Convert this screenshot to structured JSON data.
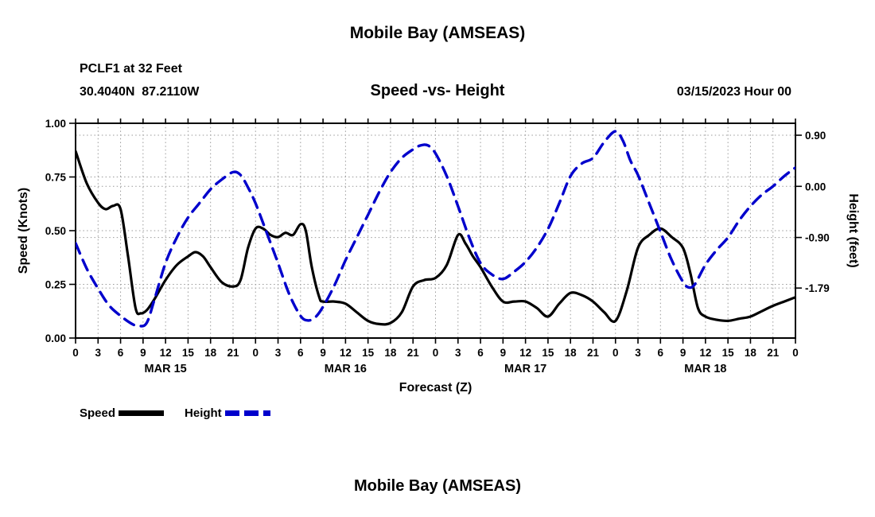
{
  "header": {
    "title": "Mobile Bay (AMSEAS)",
    "station": "PCLF1 at 32 Feet",
    "coordinates": "30.4040N  87.2110W",
    "subtitle": "Speed -vs- Height",
    "datetime": "03/15/2023 Hour 00"
  },
  "footer": {
    "title": "Mobile Bay (AMSEAS)"
  },
  "legend": {
    "speed_label": "Speed",
    "height_label": "Height"
  },
  "colors": {
    "speed": "#000000",
    "height": "#0000cc",
    "grid": "#9a9a9a",
    "frame": "#000000"
  },
  "chart_data": {
    "type": "line",
    "title": "Speed -vs- Height",
    "xlabel": "Forecast (Z)",
    "ylabel_left": "Speed (Knots)",
    "ylabel_right": "Height (feet)",
    "grid": "dotted",
    "legend_position": "bottom-left",
    "x_hours_range": [
      0,
      96
    ],
    "x_tick_interval": 3,
    "x_tick_labels_cycle": [
      "0",
      "3",
      "6",
      "9",
      "12",
      "15",
      "18",
      "21"
    ],
    "day_labels": [
      "MAR 15",
      "MAR 16",
      "MAR 17",
      "MAR 18"
    ],
    "left_axis": {
      "range": [
        0.0,
        1.0
      ],
      "ticks": [
        0.0,
        0.25,
        0.5,
        0.75,
        1.0
      ],
      "tick_labels": [
        "0.00",
        "0.25",
        "0.50",
        "0.75",
        "1.00"
      ]
    },
    "right_axis": {
      "range": [
        -2.67,
        1.11
      ],
      "ticks": [
        0.9,
        0.0,
        -0.9,
        -1.79
      ],
      "tick_labels": [
        "0.90",
        "0.00",
        "-0.90",
        "-1.79"
      ]
    },
    "series": [
      {
        "name": "Speed",
        "axis": "left",
        "color": "#000000",
        "style": "solid",
        "points": [
          [
            0,
            0.87
          ],
          [
            1.5,
            0.72
          ],
          [
            3,
            0.63
          ],
          [
            4,
            0.6
          ],
          [
            5,
            0.615
          ],
          [
            6,
            0.6
          ],
          [
            7,
            0.38
          ],
          [
            8,
            0.14
          ],
          [
            8.7,
            0.115
          ],
          [
            9.5,
            0.13
          ],
          [
            10.5,
            0.18
          ],
          [
            12,
            0.27
          ],
          [
            13.5,
            0.34
          ],
          [
            15,
            0.38
          ],
          [
            16,
            0.4
          ],
          [
            17,
            0.38
          ],
          [
            18,
            0.33
          ],
          [
            19.5,
            0.26
          ],
          [
            21,
            0.24
          ],
          [
            22,
            0.27
          ],
          [
            23,
            0.42
          ],
          [
            24,
            0.51
          ],
          [
            25,
            0.51
          ],
          [
            26,
            0.48
          ],
          [
            27,
            0.47
          ],
          [
            28,
            0.49
          ],
          [
            29,
            0.48
          ],
          [
            30,
            0.53
          ],
          [
            30.7,
            0.5
          ],
          [
            31.5,
            0.33
          ],
          [
            32.5,
            0.19
          ],
          [
            33,
            0.17
          ],
          [
            34.5,
            0.17
          ],
          [
            36,
            0.16
          ],
          [
            37.5,
            0.12
          ],
          [
            39,
            0.08
          ],
          [
            40.5,
            0.065
          ],
          [
            42,
            0.07
          ],
          [
            43.5,
            0.12
          ],
          [
            45,
            0.24
          ],
          [
            46.5,
            0.27
          ],
          [
            48,
            0.28
          ],
          [
            49.5,
            0.34
          ],
          [
            51,
            0.48
          ],
          [
            52,
            0.44
          ],
          [
            53,
            0.38
          ],
          [
            54,
            0.33
          ],
          [
            55.5,
            0.24
          ],
          [
            57,
            0.17
          ],
          [
            58.5,
            0.17
          ],
          [
            60,
            0.17
          ],
          [
            61.5,
            0.14
          ],
          [
            63,
            0.1
          ],
          [
            64.5,
            0.16
          ],
          [
            66,
            0.21
          ],
          [
            67.5,
            0.2
          ],
          [
            69,
            0.17
          ],
          [
            70.5,
            0.12
          ],
          [
            72,
            0.08
          ],
          [
            73.5,
            0.22
          ],
          [
            75,
            0.42
          ],
          [
            76.5,
            0.48
          ],
          [
            78,
            0.51
          ],
          [
            79.5,
            0.47
          ],
          [
            81,
            0.42
          ],
          [
            82,
            0.3
          ],
          [
            83,
            0.14
          ],
          [
            84,
            0.1
          ],
          [
            85.5,
            0.085
          ],
          [
            87,
            0.08
          ],
          [
            88.5,
            0.09
          ],
          [
            90,
            0.1
          ],
          [
            91.5,
            0.125
          ],
          [
            93,
            0.15
          ],
          [
            94.5,
            0.17
          ],
          [
            96,
            0.19
          ]
        ]
      },
      {
        "name": "Height",
        "axis": "right",
        "color": "#0000cc",
        "style": "dashed",
        "points": [
          [
            0,
            -1.0
          ],
          [
            1.5,
            -1.45
          ],
          [
            3,
            -1.8
          ],
          [
            4.5,
            -2.1
          ],
          [
            6,
            -2.28
          ],
          [
            7.5,
            -2.42
          ],
          [
            8.5,
            -2.46
          ],
          [
            9.5,
            -2.4
          ],
          [
            10.5,
            -2.0
          ],
          [
            12,
            -1.35
          ],
          [
            13.5,
            -0.9
          ],
          [
            15,
            -0.55
          ],
          [
            16.5,
            -0.3
          ],
          [
            18,
            -0.05
          ],
          [
            19.5,
            0.12
          ],
          [
            21,
            0.25
          ],
          [
            22,
            0.2
          ],
          [
            23,
            -0.02
          ],
          [
            24,
            -0.3
          ],
          [
            25.5,
            -0.82
          ],
          [
            27,
            -1.35
          ],
          [
            28.5,
            -1.9
          ],
          [
            30,
            -2.28
          ],
          [
            31,
            -2.36
          ],
          [
            32,
            -2.3
          ],
          [
            33,
            -2.12
          ],
          [
            34.5,
            -1.75
          ],
          [
            36,
            -1.3
          ],
          [
            37.5,
            -0.9
          ],
          [
            39,
            -0.5
          ],
          [
            40.5,
            -0.1
          ],
          [
            42,
            0.25
          ],
          [
            43.5,
            0.5
          ],
          [
            45,
            0.65
          ],
          [
            46,
            0.72
          ],
          [
            47,
            0.72
          ],
          [
            48,
            0.58
          ],
          [
            49.5,
            0.18
          ],
          [
            51,
            -0.35
          ],
          [
            52.5,
            -0.9
          ],
          [
            54,
            -1.35
          ],
          [
            55.5,
            -1.55
          ],
          [
            57,
            -1.63
          ],
          [
            58.5,
            -1.5
          ],
          [
            60,
            -1.33
          ],
          [
            61.5,
            -1.08
          ],
          [
            63,
            -0.75
          ],
          [
            64.5,
            -0.3
          ],
          [
            66,
            0.18
          ],
          [
            67.5,
            0.4
          ],
          [
            69,
            0.5
          ],
          [
            70.5,
            0.78
          ],
          [
            72,
            0.97
          ],
          [
            73,
            0.8
          ],
          [
            74,
            0.45
          ],
          [
            75,
            0.2
          ],
          [
            76.5,
            -0.3
          ],
          [
            78,
            -0.8
          ],
          [
            79.5,
            -1.3
          ],
          [
            81,
            -1.68
          ],
          [
            81.8,
            -1.78
          ],
          [
            82.6,
            -1.72
          ],
          [
            84,
            -1.38
          ],
          [
            85.5,
            -1.12
          ],
          [
            87,
            -0.9
          ],
          [
            88.5,
            -0.6
          ],
          [
            90,
            -0.35
          ],
          [
            91.5,
            -0.15
          ],
          [
            93,
            0.0
          ],
          [
            94.5,
            0.18
          ],
          [
            96,
            0.33
          ]
        ]
      }
    ]
  }
}
